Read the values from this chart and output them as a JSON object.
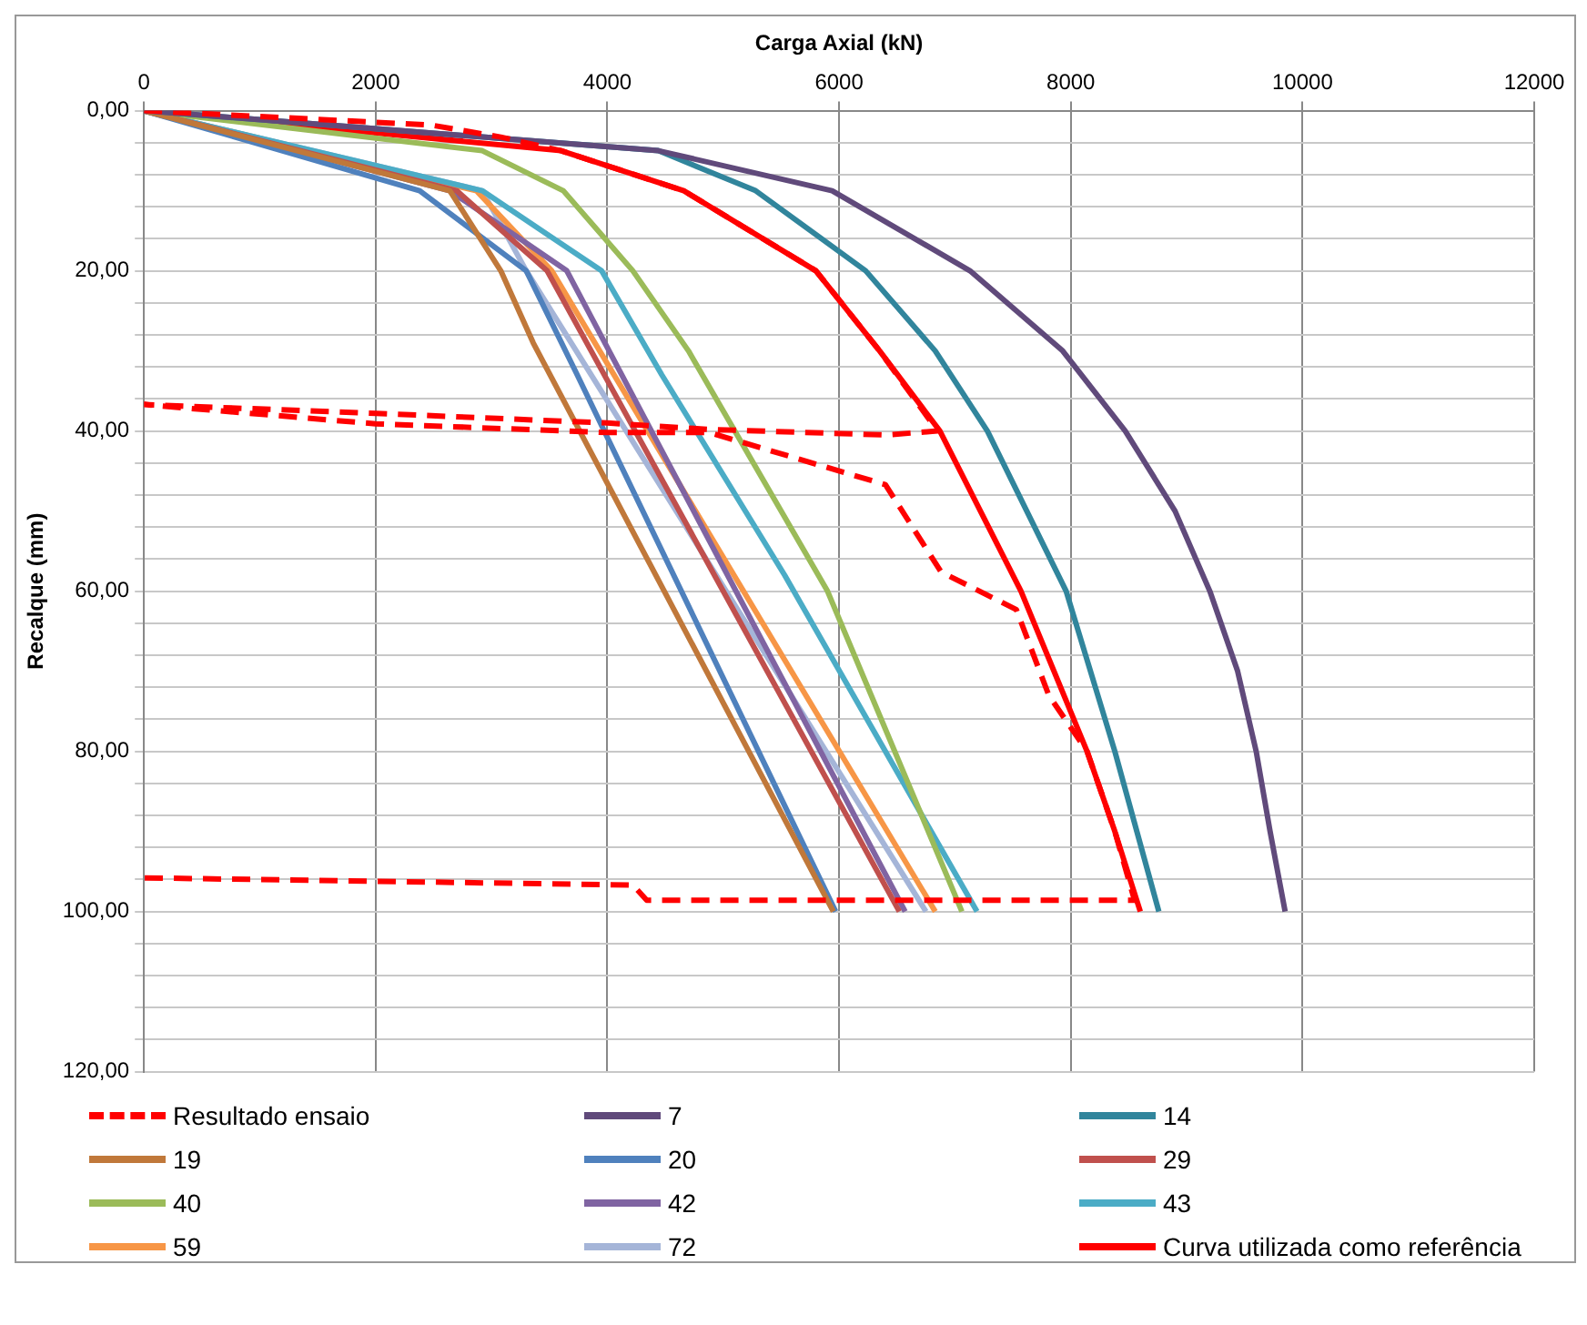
{
  "chart_data": {
    "type": "line",
    "xlabel": "Carga Axial (kN)",
    "ylabel": "Recalque (mm)",
    "xlim": [
      0,
      12000
    ],
    "xticks": [
      0,
      2000,
      4000,
      6000,
      8000,
      10000,
      12000
    ],
    "ylim": [
      120,
      0
    ],
    "yticks": [
      {
        "value": 0,
        "label": "0,00"
      },
      {
        "value": 4,
        "label": null
      },
      {
        "value": 8,
        "label": null
      },
      {
        "value": 12,
        "label": null
      },
      {
        "value": 16,
        "label": null
      },
      {
        "value": 20,
        "label": "20,00"
      },
      {
        "value": 24,
        "label": null
      },
      {
        "value": 28,
        "label": null
      },
      {
        "value": 32,
        "label": null
      },
      {
        "value": 36,
        "label": null
      },
      {
        "value": 40,
        "label": "40,00"
      },
      {
        "value": 44,
        "label": null
      },
      {
        "value": 48,
        "label": null
      },
      {
        "value": 52,
        "label": null
      },
      {
        "value": 56,
        "label": null
      },
      {
        "value": 60,
        "label": "60,00"
      },
      {
        "value": 64,
        "label": null
      },
      {
        "value": 68,
        "label": null
      },
      {
        "value": 72,
        "label": null
      },
      {
        "value": 76,
        "label": null
      },
      {
        "value": 80,
        "label": "80,00"
      },
      {
        "value": 84,
        "label": null
      },
      {
        "value": 88,
        "label": null
      },
      {
        "value": 92,
        "label": null
      },
      {
        "value": 96,
        "label": null
      },
      {
        "value": 100,
        "label": "100,00"
      },
      {
        "value": 104,
        "label": null
      },
      {
        "value": 108,
        "label": null
      },
      {
        "value": 112,
        "label": null
      },
      {
        "value": 116,
        "label": null
      },
      {
        "value": 120,
        "label": "120,00"
      }
    ],
    "grid": true,
    "legend": "bottom",
    "marker": "none",
    "series": [
      {
        "name": "Resultado ensaio",
        "color": "#ff0000",
        "line_style": "dashed",
        "x": [
          0,
          2480,
          3080,
          3600,
          4660,
          5800,
          6350,
          6850,
          6400,
          4880,
          4000,
          2000,
          0,
          2000,
          4000,
          4880,
          6400,
          6880,
          7530,
          7810,
          8140,
          8380,
          8550,
          4340,
          4220,
          0
        ],
        "values": [
          0,
          1.8,
          3.3,
          5,
          10,
          20,
          30,
          40,
          40.5,
          39.8,
          39,
          37.8,
          36.7,
          39.1,
          40.2,
          40.2,
          46.7,
          57.6,
          62.3,
          73,
          80,
          90,
          98.6,
          98.6,
          96.7,
          95.8
        ]
      },
      {
        "name": "7",
        "color": "#604a7b",
        "x": [
          0,
          4440,
          5940,
          7130,
          7930,
          8470,
          8900,
          9200,
          9440,
          9600,
          9720,
          9850
        ],
        "values": [
          0,
          5,
          10,
          20,
          30,
          40,
          50,
          60,
          70,
          80,
          90,
          100
        ]
      },
      {
        "name": "14",
        "color": "#31859c",
        "x": [
          0,
          4440,
          5280,
          6230,
          6830,
          7280,
          7620,
          7960,
          8380,
          8760
        ],
        "values": [
          0,
          5,
          10,
          20,
          30,
          40,
          50,
          60,
          80,
          100
        ]
      },
      {
        "name": "19",
        "color": "#c0783a",
        "x": [
          0,
          2640,
          3080,
          3360,
          5950
        ],
        "values": [
          0,
          10,
          20,
          29,
          100
        ]
      },
      {
        "name": "20",
        "color": "#4f81bd",
        "x": [
          0,
          2380,
          3300,
          3740,
          5970
        ],
        "values": [
          0,
          10,
          20,
          33,
          100
        ]
      },
      {
        "name": "29",
        "color": "#c0504d",
        "x": [
          0,
          2700,
          3480,
          6520
        ],
        "values": [
          0,
          10,
          20,
          100
        ]
      },
      {
        "name": "40",
        "color": "#9bbb59",
        "x": [
          0,
          2920,
          3620,
          4220,
          4700,
          5900,
          7060
        ],
        "values": [
          0,
          5,
          10,
          20,
          30,
          60,
          100
        ]
      },
      {
        "name": "42",
        "color": "#8064a2",
        "x": [
          0,
          2640,
          3650,
          6570
        ],
        "values": [
          0,
          10,
          20,
          100
        ]
      },
      {
        "name": "43",
        "color": "#4bacc6",
        "x": [
          0,
          2920,
          3950,
          4470,
          5530,
          7190
        ],
        "values": [
          0,
          10,
          20,
          33,
          58,
          100
        ]
      },
      {
        "name": "59",
        "color": "#f79646",
        "x": [
          0,
          2870,
          3520,
          6830
        ],
        "values": [
          0,
          10,
          20,
          100
        ]
      },
      {
        "name": "72",
        "color": "#a5b5d8",
        "x": [
          0,
          2920,
          3300,
          6750
        ],
        "values": [
          0,
          10,
          20,
          100
        ]
      },
      {
        "name": "Curva utilizada como referência",
        "color": "#ff0000",
        "line_style": "solid",
        "x": [
          0,
          3600,
          4660,
          5800,
          6350,
          6870,
          7570,
          8140,
          8380,
          8600
        ],
        "values": [
          0,
          5,
          10,
          20,
          30,
          40,
          60,
          80,
          90,
          100
        ]
      }
    ]
  }
}
